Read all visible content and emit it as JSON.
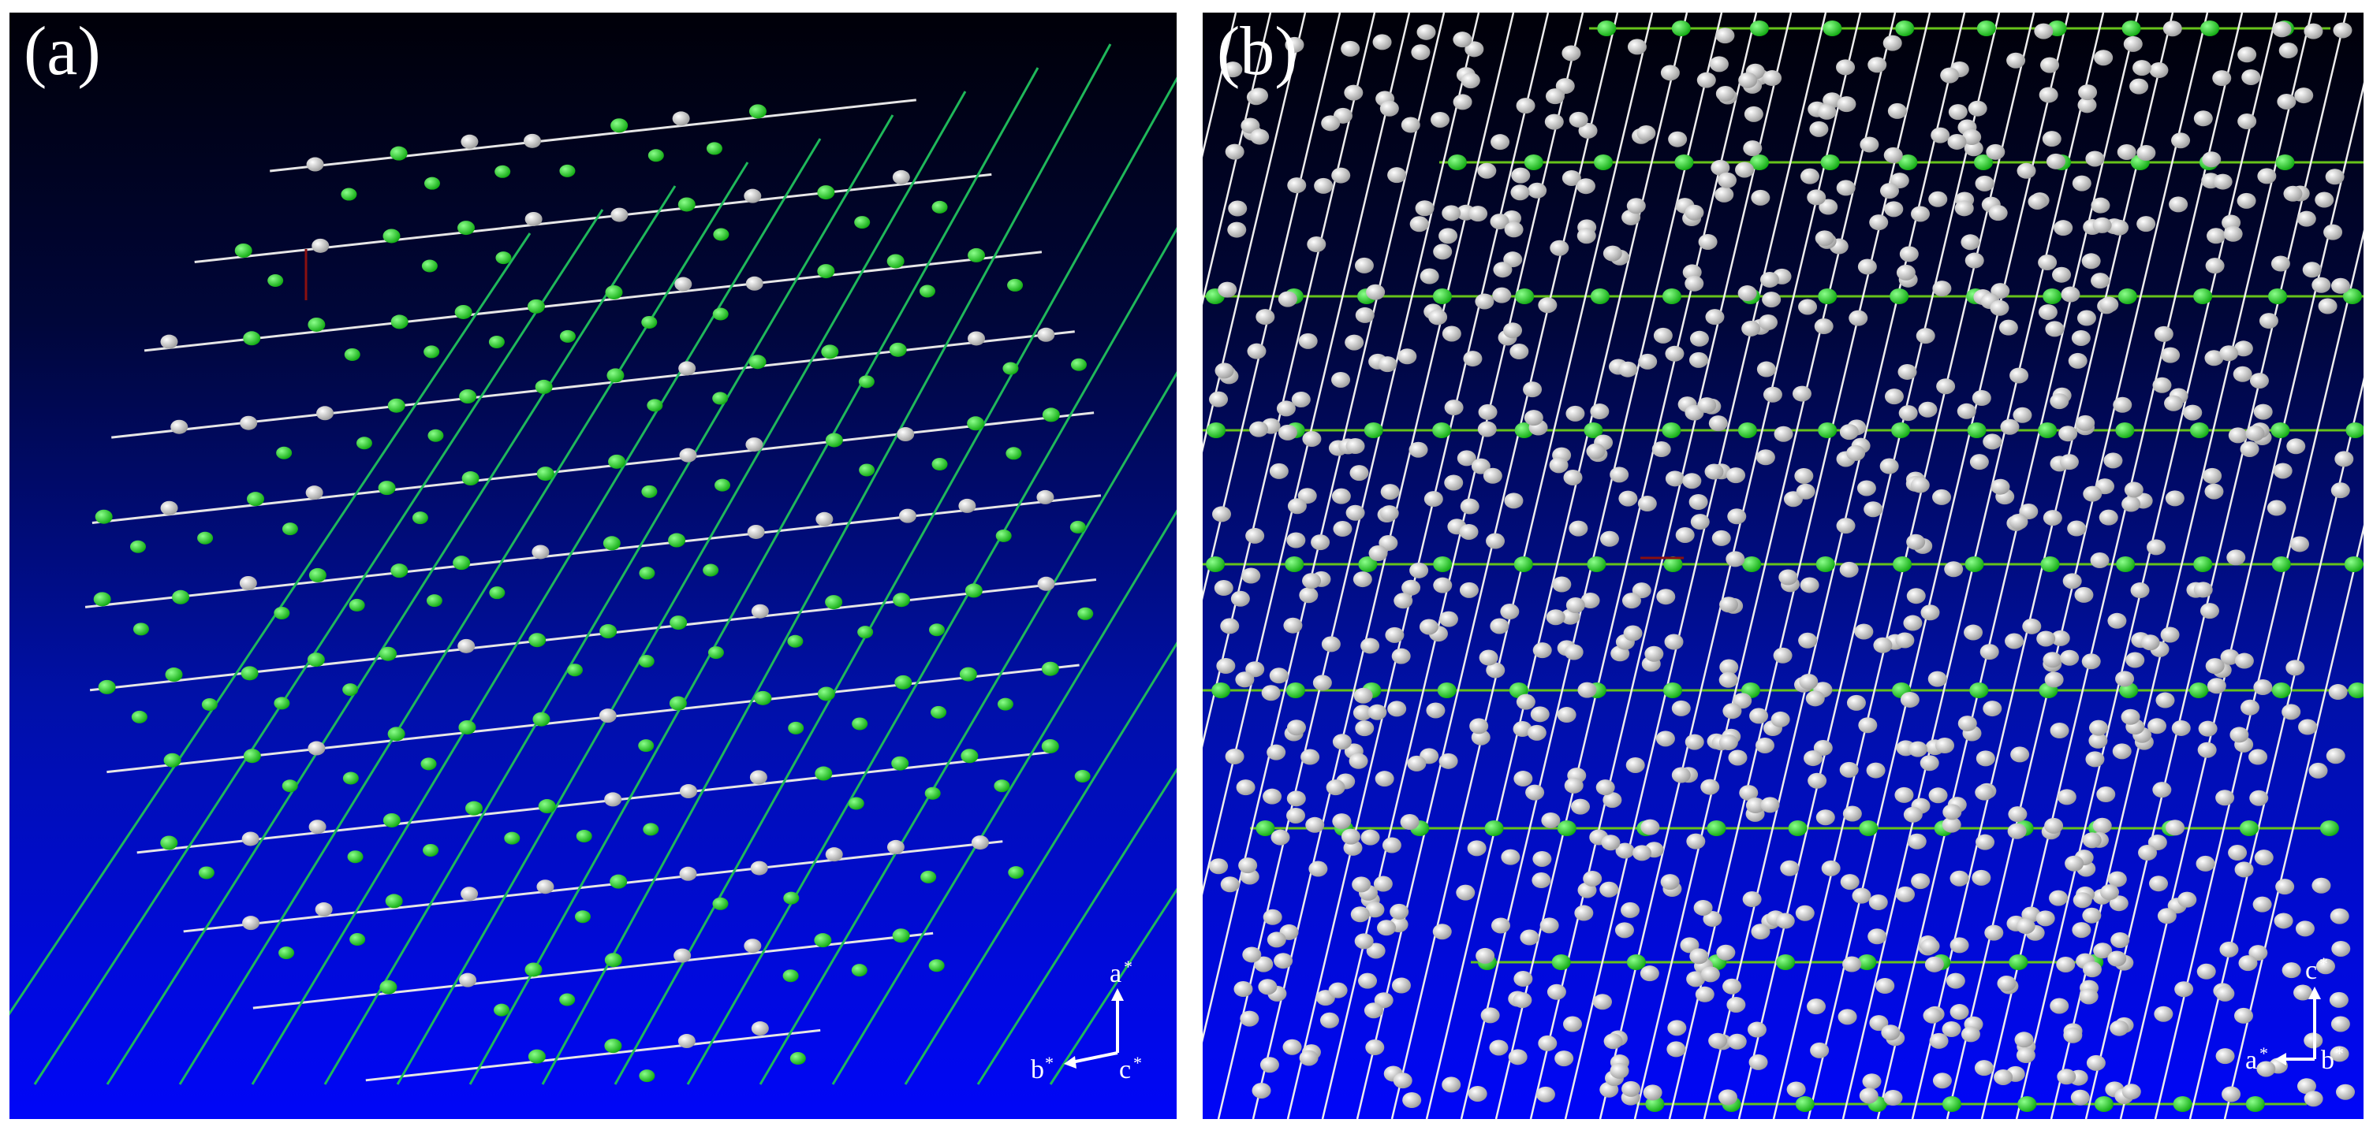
{
  "panels": [
    {
      "id": "a",
      "label": "(a)",
      "axes": {
        "up": "a",
        "left": "b",
        "out": "c",
        "star": "*"
      },
      "colors": {
        "grid_line_1": "#e6e6e6",
        "grid_line_2": "#1fb85a",
        "atom_white": "#e8e8e8",
        "atom_green": "#1fd21f"
      }
    },
    {
      "id": "b",
      "label": "(b)",
      "axes": {
        "up": "c",
        "left": "a",
        "out": "b",
        "star": "*"
      },
      "colors": {
        "grid_line_1": "#ededed",
        "grid_line_2": "#66c21a",
        "atom_white": "#e6e6e6",
        "atom_green": "#1fd21f"
      }
    }
  ],
  "background": {
    "top": "#000008",
    "bottom": "#0006f8"
  }
}
